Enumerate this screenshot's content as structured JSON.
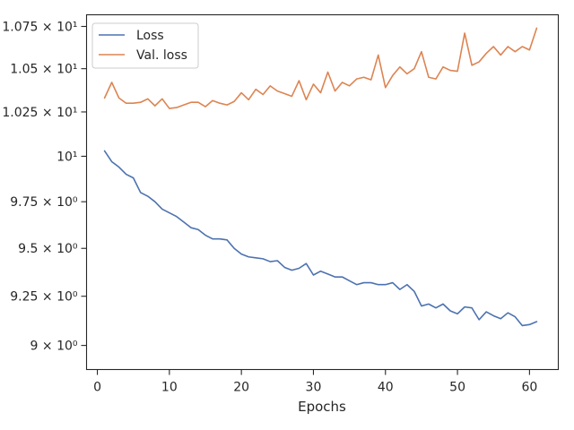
{
  "chart_data": {
    "type": "line",
    "title": "",
    "xlabel": "Epochs",
    "ylabel": "",
    "xlim": [
      -1.5,
      64
    ],
    "ylim": [
      8.88,
      10.82
    ],
    "y_scale": "log",
    "grid": false,
    "legend_position": "top-left",
    "x_ticks": [
      0,
      10,
      20,
      30,
      40,
      50,
      60
    ],
    "x_tick_labels": [
      "0",
      "10",
      "20",
      "30",
      "40",
      "50",
      "60"
    ],
    "y_ticks": [
      9.0,
      9.25,
      9.5,
      9.75,
      10.0,
      10.25,
      10.5,
      10.75
    ],
    "y_tick_labels": [
      "9 × 10⁰",
      "9.25 × 10⁰",
      "9.5 × 10⁰",
      "9.75 × 10⁰",
      "10¹",
      "1.025 × 10¹",
      "1.05 × 10¹",
      "1.075 × 10¹"
    ],
    "x": [
      1,
      2,
      3,
      4,
      5,
      6,
      7,
      8,
      9,
      10,
      11,
      12,
      13,
      14,
      15,
      16,
      17,
      18,
      19,
      20,
      21,
      22,
      23,
      24,
      25,
      26,
      27,
      28,
      29,
      30,
      31,
      32,
      33,
      34,
      35,
      36,
      37,
      38,
      39,
      40,
      41,
      42,
      43,
      44,
      45,
      46,
      47,
      48,
      49,
      50,
      51,
      52,
      53,
      54,
      55,
      56,
      57,
      58,
      59,
      60,
      61
    ],
    "series": [
      {
        "name": "Loss",
        "color": "#4c72b0",
        "values": [
          10.03,
          9.97,
          9.94,
          9.9,
          9.88,
          9.8,
          9.78,
          9.75,
          9.71,
          9.69,
          9.67,
          9.64,
          9.61,
          9.6,
          9.57,
          9.55,
          9.55,
          9.545,
          9.5,
          9.47,
          9.455,
          9.45,
          9.445,
          9.43,
          9.435,
          9.4,
          9.385,
          9.395,
          9.42,
          9.36,
          9.38,
          9.365,
          9.35,
          9.35,
          9.33,
          9.31,
          9.32,
          9.32,
          9.31,
          9.31,
          9.32,
          9.285,
          9.31,
          9.275,
          9.2,
          9.21,
          9.19,
          9.21,
          9.175,
          9.16,
          9.195,
          9.19,
          9.13,
          9.17,
          9.15,
          9.135,
          9.165,
          9.145,
          9.1,
          9.105,
          9.12
        ]
      },
      {
        "name": "Val. loss",
        "color": "#dd8452",
        "values": [
          10.33,
          10.42,
          10.33,
          10.3,
          10.3,
          10.305,
          10.325,
          10.285,
          10.325,
          10.27,
          10.275,
          10.29,
          10.305,
          10.305,
          10.28,
          10.315,
          10.3,
          10.29,
          10.31,
          10.36,
          10.32,
          10.38,
          10.35,
          10.4,
          10.37,
          10.355,
          10.34,
          10.43,
          10.32,
          10.41,
          10.36,
          10.48,
          10.37,
          10.42,
          10.4,
          10.44,
          10.45,
          10.435,
          10.58,
          10.39,
          10.46,
          10.51,
          10.47,
          10.5,
          10.6,
          10.45,
          10.44,
          10.51,
          10.49,
          10.485,
          10.71,
          10.52,
          10.54,
          10.59,
          10.63,
          10.58,
          10.63,
          10.6,
          10.63,
          10.61,
          10.74
        ]
      }
    ]
  }
}
